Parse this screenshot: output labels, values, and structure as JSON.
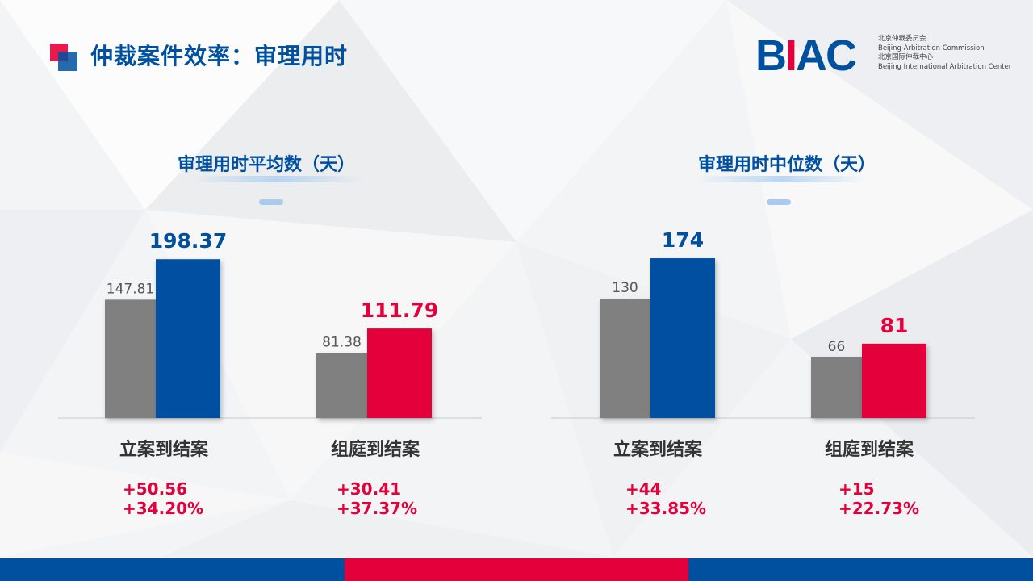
{
  "header": {
    "title": "仲裁案件效率：审理用时"
  },
  "logo": {
    "mark_prefix": "B",
    "mark_i": "I",
    "mark_suffix": "AC",
    "line1": "北京仲裁委员会",
    "line2": "Beijing Arbitration Commission",
    "line3": "北京国际仲裁中心",
    "line4": "Beijing International Arbitration Center"
  },
  "colors": {
    "blue": "#0050a0",
    "red": "#e4003a",
    "gray": "#808080"
  },
  "chart_data": [
    {
      "type": "bar",
      "title": "审理用时平均数（天）",
      "categories": [
        "立案到结案",
        "组庭到结案"
      ],
      "series": [
        {
          "values": [
            147.81,
            81.38
          ]
        },
        {
          "values": [
            198.37,
            111.79
          ]
        }
      ],
      "value_labels": [
        [
          "147.81",
          "81.38"
        ],
        [
          "198.37",
          "111.79"
        ]
      ],
      "deltas": [
        {
          "abs": "+50.56",
          "pct": "+34.20%"
        },
        {
          "abs": "+30.41",
          "pct": "+37.37%"
        }
      ],
      "ylim": [
        0,
        250
      ],
      "grid": false
    },
    {
      "type": "bar",
      "title": "审理用时中位数（天）",
      "categories": [
        "立案到结案",
        "组庭到结案"
      ],
      "series": [
        {
          "values": [
            130,
            66
          ]
        },
        {
          "values": [
            174,
            81
          ]
        }
      ],
      "value_labels": [
        [
          "130",
          "66"
        ],
        [
          "174",
          "81"
        ]
      ],
      "deltas": [
        {
          "abs": "+44",
          "pct": "+33.85%"
        },
        {
          "abs": "+15",
          "pct": "+22.73%"
        }
      ],
      "ylim": [
        0,
        218
      ],
      "grid": false
    }
  ]
}
